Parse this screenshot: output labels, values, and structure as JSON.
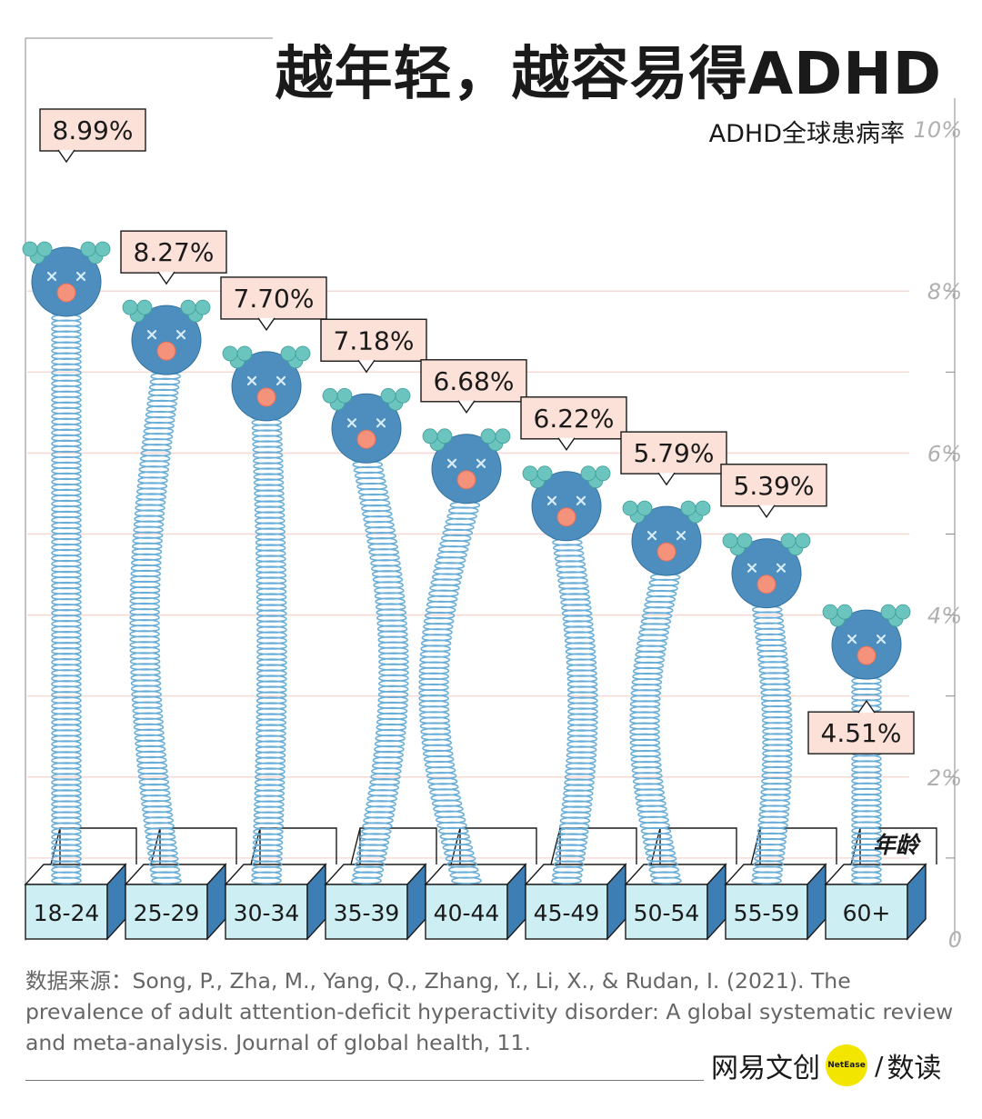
{
  "title": "越年轻，越容易得ADHD",
  "colors": {
    "head": "#4e8ebf",
    "head_dark": "#2f6f9c",
    "nose": "#f5927c",
    "ear": "#6cc4bf",
    "spring": "#6aaed8",
    "label_fill": "#fbe1d8",
    "box_front": "#cdeef3",
    "box_side": "#3d7fb4",
    "grid": "#f7d8d3",
    "axis_text": "#b0b0b0"
  },
  "chart_data": {
    "type": "bar",
    "title": "越年轻，越容易得ADHD",
    "ylabel": "ADHD全球患病率",
    "xlabel": "年龄",
    "ylim": [
      0,
      10
    ],
    "yticks": [
      "0",
      "2%",
      "4%",
      "6%",
      "8%",
      "10%"
    ],
    "categories": [
      "18-24",
      "25-29",
      "30-34",
      "35-39",
      "40-44",
      "45-49",
      "50-54",
      "55-59",
      "60+"
    ],
    "values": [
      8.99,
      8.27,
      7.7,
      7.18,
      6.68,
      6.22,
      5.79,
      5.39,
      4.51
    ],
    "value_labels": [
      "8.99%",
      "8.27%",
      "7.70%",
      "7.18%",
      "6.68%",
      "6.22%",
      "5.79%",
      "5.39%",
      "4.51%"
    ],
    "value_suffix": "%"
  },
  "source": "数据来源：Song, P., Zha, M., Yang, Q., Zhang, Y., Li, X., & Rudan, I. (2021). The prevalence of adult attention-deficit hyperactivity disorder: A global systematic review and meta-analysis. Journal of global health, 11.",
  "brand": {
    "left": "网易文创",
    "badge": "NetEase",
    "slash": "/",
    "right": "数读"
  }
}
